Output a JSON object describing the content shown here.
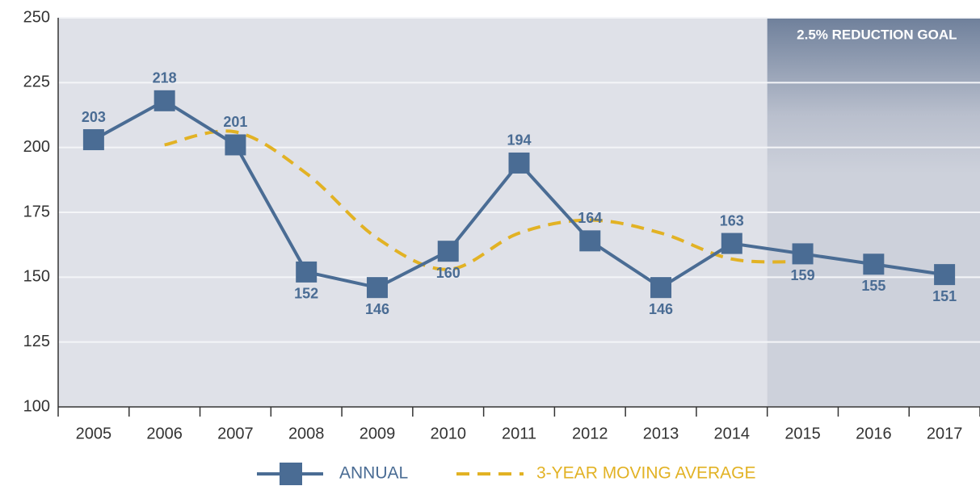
{
  "chart_data": {
    "type": "line",
    "categories": [
      "2005",
      "2006",
      "2007",
      "2008",
      "2009",
      "2010",
      "2011",
      "2012",
      "2013",
      "2014",
      "2015",
      "2016",
      "2017"
    ],
    "series": [
      {
        "name": "ANNUAL",
        "color": "#4a6c94",
        "values": [
          203,
          218,
          201,
          152,
          146,
          160,
          194,
          164,
          146,
          163,
          159,
          155,
          151
        ]
      },
      {
        "name": "3-YEAR MOVING AVERAGE",
        "color": "#e2b224",
        "values": [
          null,
          201,
          206,
          190,
          165,
          153,
          167,
          172,
          167,
          157,
          156,
          null,
          null
        ]
      }
    ],
    "ylim": [
      100,
      250
    ],
    "yticks": [
      100,
      125,
      150,
      175,
      200,
      225,
      250
    ],
    "grid": true,
    "annotation": {
      "text": "2.5% REDUCTION GOAL",
      "from": "2015"
    }
  }
}
